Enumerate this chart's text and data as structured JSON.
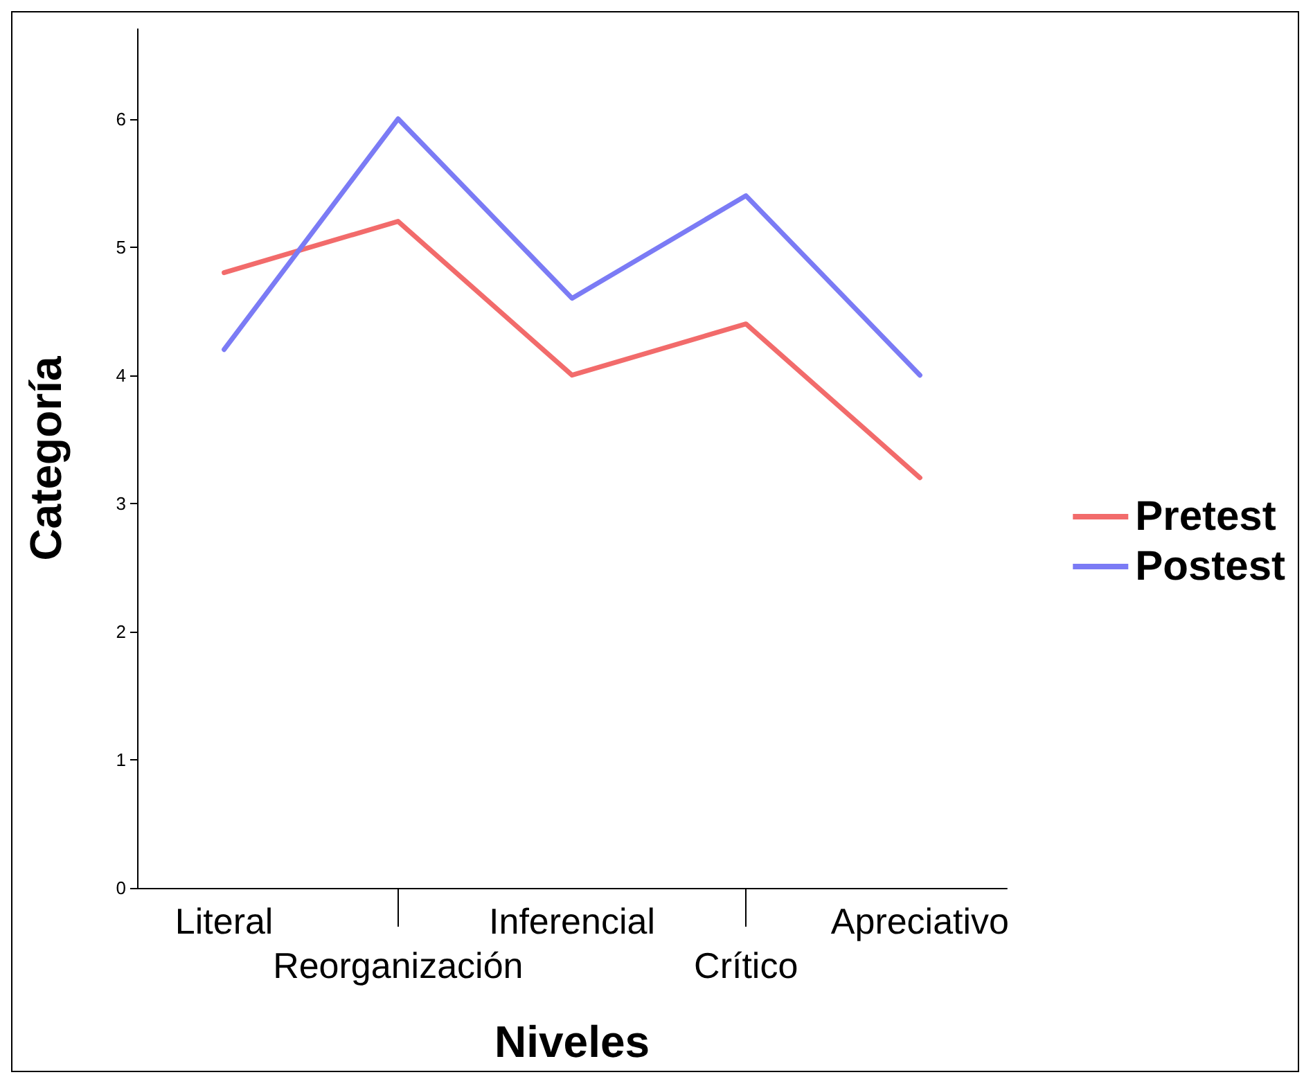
{
  "chart_data": {
    "type": "line",
    "xlabel": "Niveles",
    "ylabel": "Categoría",
    "categories": [
      "Literal",
      "Reorganización",
      "Inferencial",
      "Crítico",
      "Apreciativo"
    ],
    "series": [
      {
        "name": "Pretest",
        "color": "#f26b6b",
        "values": [
          4.8,
          5.2,
          4.0,
          4.4,
          3.2
        ]
      },
      {
        "name": "Postest",
        "color": "#7b7bf5",
        "values": [
          4.2,
          6.0,
          4.6,
          5.4,
          4.0
        ]
      }
    ],
    "ylim": [
      0,
      6.7
    ],
    "yticks": [
      0,
      1,
      2,
      3,
      4,
      5,
      6
    ],
    "grid": false,
    "legend": "right",
    "marker": "none",
    "line_style": "solid"
  }
}
